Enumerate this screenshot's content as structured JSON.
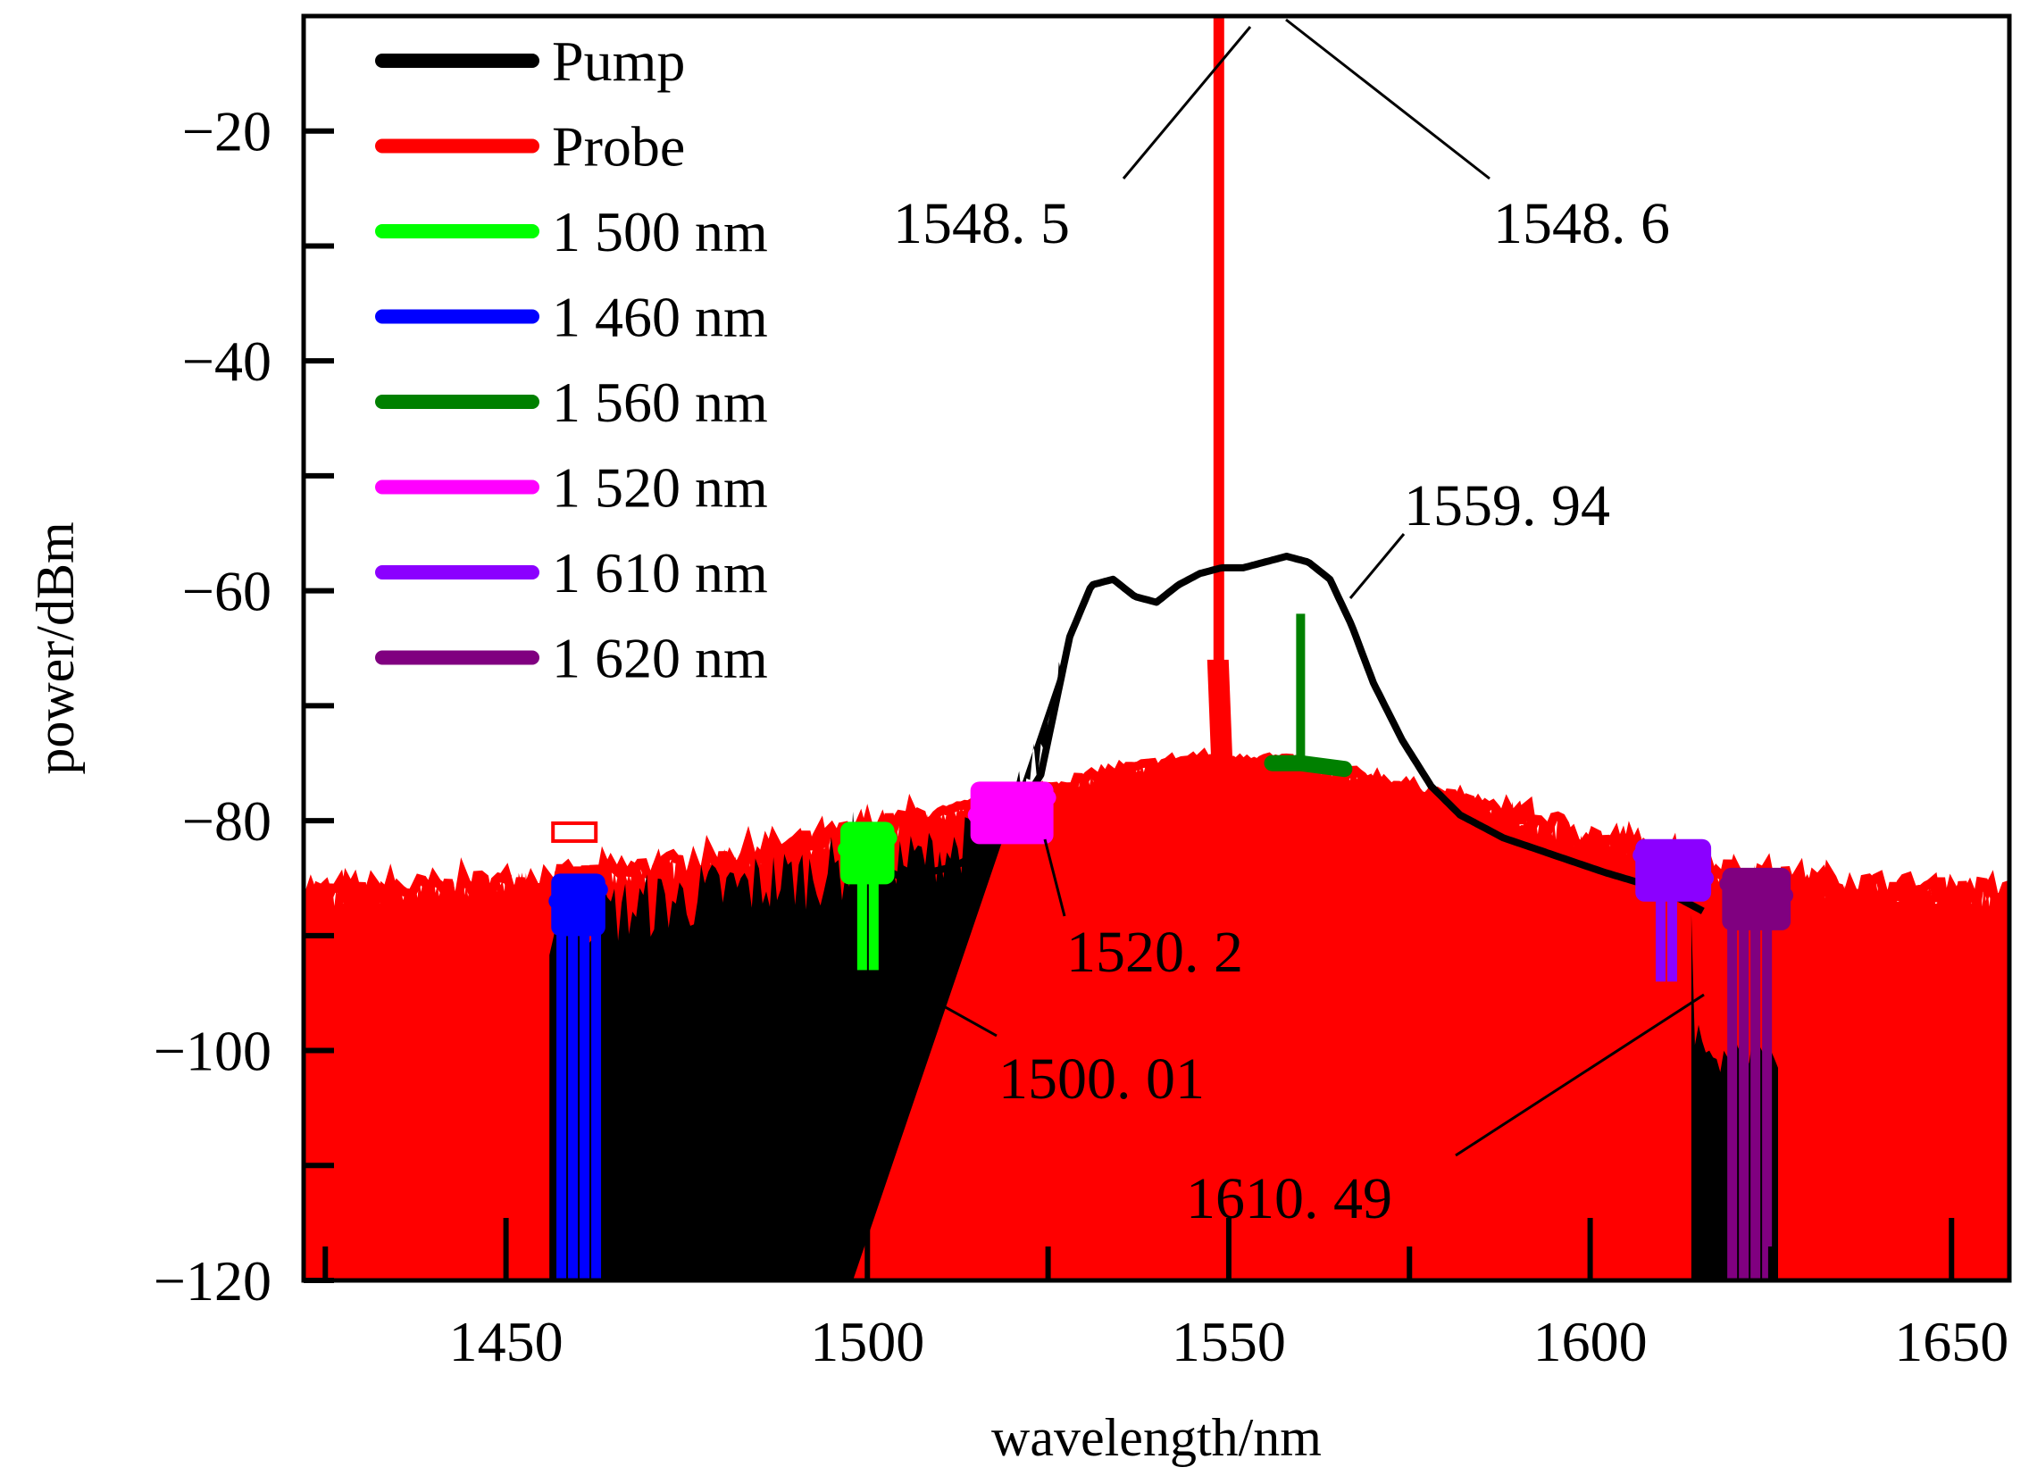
{
  "chart_data": {
    "type": "line",
    "title": "",
    "xlabel": "wavelength/nm",
    "ylabel": "power/dBm",
    "xlim": [
      1422,
      1658
    ],
    "ylim": [
      -120,
      -10
    ],
    "xticks": [
      1450,
      1500,
      1550,
      1600,
      1650
    ],
    "yticks": [
      -120,
      -100,
      -80,
      -60,
      -40,
      -20
    ],
    "grid": false,
    "legend_position": "top-left",
    "series": [
      {
        "name": "Pump",
        "color": "#000000",
        "x": [
          1498,
          1505,
          1512,
          1518,
          1524,
          1528,
          1531,
          1534,
          1537,
          1540,
          1543,
          1546,
          1549,
          1552,
          1555,
          1558,
          1561,
          1564,
          1567,
          1570,
          1574,
          1578,
          1582,
          1588,
          1595,
          1602,
          1610,
          1616
        ],
        "y": [
          -83,
          -85,
          -84,
          -82,
          -76,
          -64,
          -59.5,
          -59,
          -60.5,
          -61,
          -59.5,
          -58.5,
          -58,
          -58,
          -57.5,
          -57,
          -57.5,
          -59,
          -63,
          -68,
          -73,
          -77,
          -79.5,
          -81.5,
          -83,
          -84.5,
          -86,
          -88
        ]
      },
      {
        "name": "Probe",
        "color": "#ff0000",
        "x": [
          1422,
          1440,
          1460,
          1480,
          1500,
          1515,
          1525,
          1535,
          1545,
          1548.5,
          1555,
          1565,
          1575,
          1585,
          1600,
          1615,
          1630,
          1645,
          1658
        ],
        "y": [
          -87,
          -86.5,
          -85.5,
          -84,
          -81.5,
          -79,
          -77.5,
          -76,
          -75,
          -10,
          -75,
          -76,
          -77.5,
          -79,
          -82,
          -84.5,
          -86,
          -86.5,
          -87
        ]
      },
      {
        "name": "1 500 nm",
        "color": "#00ff00",
        "x": [
          1497,
          1500.01,
          1503
        ],
        "y": [
          -82.5,
          -82,
          -81.5
        ],
        "peak_x": 1500.01,
        "peak_y": -93
      },
      {
        "name": "1 460 nm",
        "color": "#0000ff",
        "x": [
          1457,
          1460,
          1463
        ],
        "y": [
          -87,
          -86.5,
          -86
        ],
        "peak_x": 1460,
        "peak_y": -120
      },
      {
        "name": "1 560 nm",
        "color": "#008000",
        "x": [
          1556,
          1559.94,
          1566
        ],
        "y": [
          -75,
          -75,
          -75.5
        ],
        "peak_x": 1559.94,
        "peak_y": -62
      },
      {
        "name": "1 520 nm",
        "color": "#ff00ff",
        "x": [
          1515,
          1520.2,
          1525
        ],
        "y": [
          -79.5,
          -79,
          -78
        ],
        "peak_x": 1520.2,
        "peak_y": -81
      },
      {
        "name": "1 610 nm",
        "color": "#8b00ff",
        "x": [
          1607,
          1610.49,
          1616
        ],
        "y": [
          -83,
          -84,
          -85
        ],
        "peak_x": 1610.49,
        "peak_y": -94
      },
      {
        "name": "1 620 nm",
        "color": "#800080",
        "x": [
          1619,
          1622,
          1627
        ],
        "y": [
          -85.5,
          -86,
          -86.5
        ],
        "peak_x": 1622,
        "peak_y": -120
      }
    ],
    "annotations": [
      {
        "text": "1548. 5",
        "x": 1548.5,
        "y": -10
      },
      {
        "text": "1548. 6",
        "x": 1548.6,
        "y": -10
      },
      {
        "text": "1559. 94",
        "x": 1559.94,
        "y": -62
      },
      {
        "text": "1520. 2",
        "x": 1520.2,
        "y": -81
      },
      {
        "text": "1500. 01",
        "x": 1500.01,
        "y": -93
      },
      {
        "text": "1610. 49",
        "x": 1610.49,
        "y": -94
      }
    ]
  }
}
